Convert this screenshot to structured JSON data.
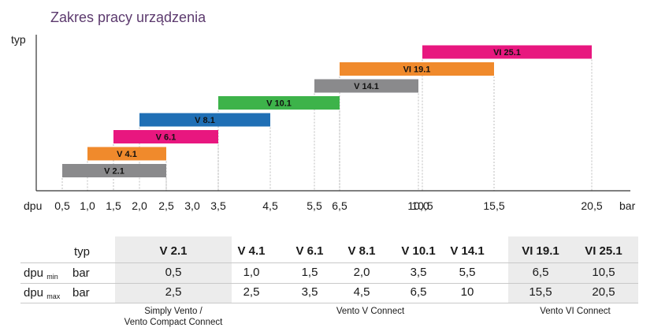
{
  "title": "Zakres pracy urządzenia",
  "chart_data": {
    "type": "bar",
    "orientation": "horizontal-range",
    "title": "Zakres pracy urządzenia",
    "ylabel": "typ",
    "xlabel": "dpu",
    "xunit": "bar",
    "xticks": [
      "0,5",
      "1,0",
      "1,5",
      "2,0",
      "2,5",
      "3,0",
      "3,5",
      "4,5",
      "5,5",
      "6,5",
      "10,0",
      "10,5",
      "15,5",
      "20,5"
    ],
    "series": [
      {
        "name": "V 2.1",
        "min": 0.5,
        "max": 2.5,
        "color": "#8a8a8c"
      },
      {
        "name": "V 4.1",
        "min": 1.0,
        "max": 2.5,
        "color": "#f08a2c"
      },
      {
        "name": "V 6.1",
        "min": 1.5,
        "max": 3.5,
        "color": "#e8177f"
      },
      {
        "name": "V 8.1",
        "min": 2.0,
        "max": 4.5,
        "color": "#1f6fb5"
      },
      {
        "name": "V 10.1",
        "min": 3.5,
        "max": 6.5,
        "color": "#3db34a"
      },
      {
        "name": "V 14.1",
        "min": 5.5,
        "max": 10.0,
        "color": "#8a8a8c"
      },
      {
        "name": "VI 19.1",
        "min": 6.5,
        "max": 15.5,
        "color": "#f08a2c"
      },
      {
        "name": "VI 25.1",
        "min": 10.5,
        "max": 20.5,
        "color": "#e8177f"
      }
    ]
  },
  "table": {
    "head_label": "typ",
    "row_min_label": "dpu",
    "row_min_sub": "min",
    "row_max_label": "dpu",
    "row_max_sub": "max",
    "unit": "bar",
    "columns": [
      {
        "type": "V 2.1",
        "min": "0,5",
        "max": "2,5"
      },
      {
        "type": "V 4.1",
        "min": "1,0",
        "max": "2,5"
      },
      {
        "type": "V 6.1",
        "min": "1,5",
        "max": "3,5"
      },
      {
        "type": "V 8.1",
        "min": "2,0",
        "max": "4,5"
      },
      {
        "type": "V 10.1",
        "min": "3,5",
        "max": "6,5"
      },
      {
        "type": "V 14.1",
        "min": "5,5",
        "max": "10"
      },
      {
        "type": "VI 19.1",
        "min": "6,5",
        "max": "15,5"
      },
      {
        "type": "VI 25.1",
        "min": "10,5",
        "max": "20,5"
      }
    ],
    "groups": {
      "g1_line1": "Simply Vento /",
      "g1_line2": "Vento Compact Connect",
      "g2": "Vento V Connect",
      "g3": "Vento VI Connect"
    }
  }
}
